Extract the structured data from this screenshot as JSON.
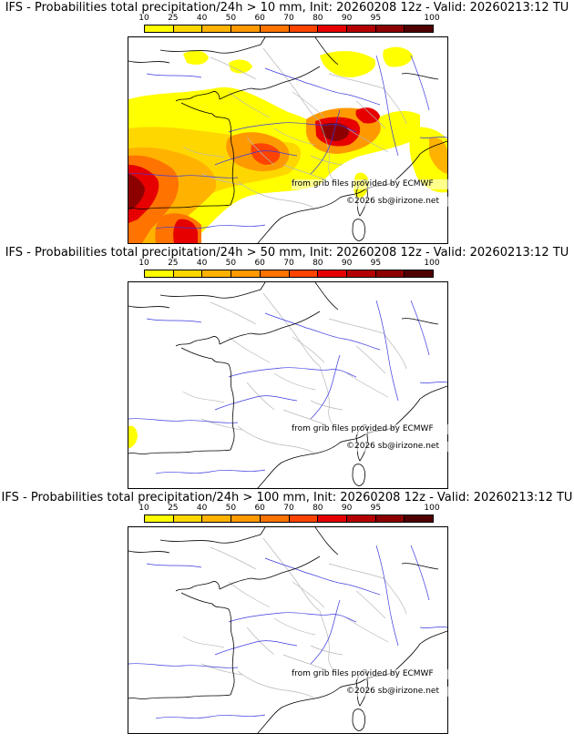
{
  "colorbar": {
    "ticks": [
      "10",
      "25",
      "40",
      "50",
      "60",
      "70",
      "80",
      "90",
      "95",
      "100"
    ],
    "colors": [
      "#ffff00",
      "#ffd700",
      "#ffb300",
      "#ff9900",
      "#ff7300",
      "#ff4400",
      "#e60000",
      "#b40000",
      "#8c0000",
      "#500000"
    ]
  },
  "panels": [
    {
      "title": "IFS - Probabilities total precipitation/24h > 10 mm, Init: 20260208 12z - Valid: 20260213:12 TU",
      "credit_source": "from grib files provided by ECMWF",
      "credit_copyright": "©2026 sb@irizone.net",
      "coverage": "heavy"
    },
    {
      "title": "IFS - Probabilities total precipitation/24h > 50 mm, Init: 20260208 12z - Valid: 20260213:12 TU",
      "credit_source": "from grib files provided by ECMWF",
      "credit_copyright": "©2026 sb@irizone.net",
      "coverage": "light"
    },
    {
      "title": "IFS - Probabilities total precipitation/24h > 100 mm, Init: 20260208 12z - Valid: 20260213:12 TU",
      "credit_source": "from grib files provided by ECMWF",
      "credit_copyright": "©2026 sb@irizone.net",
      "coverage": "none"
    }
  ]
}
